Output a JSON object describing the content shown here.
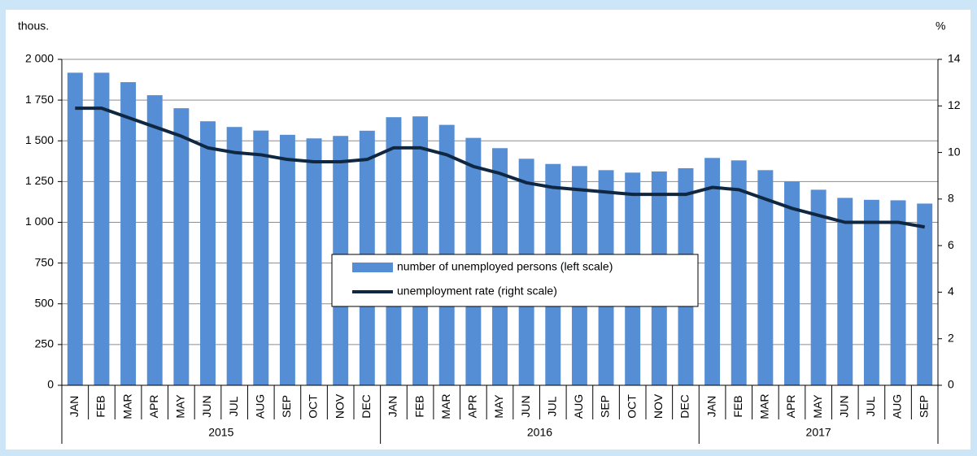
{
  "chart_data": {
    "type": "bar",
    "y_label": "thous.",
    "y2_label": "%",
    "categories": [
      "JAN",
      "FEB",
      "MAR",
      "APR",
      "MAY",
      "JUN",
      "JUL",
      "AUG",
      "SEP",
      "OCT",
      "NOV",
      "DEC",
      "JAN",
      "FEB",
      "MAR",
      "APR",
      "MAY",
      "JUN",
      "JUL",
      "AUG",
      "SEP",
      "OCT",
      "NOV",
      "DEC",
      "JAN",
      "FEB",
      "MAR",
      "APR",
      "MAY",
      "JUN",
      "JUL",
      "AUG",
      "SEP"
    ],
    "years": [
      "2015",
      "2016",
      "2017"
    ],
    "series": [
      {
        "name": "number of unemployed persons (left scale)",
        "type": "bar",
        "color": "#558ed5",
        "values": [
          1918,
          1918,
          1860,
          1780,
          1700,
          1620,
          1585,
          1563,
          1537,
          1515,
          1530,
          1562,
          1645,
          1650,
          1598,
          1518,
          1455,
          1390,
          1358,
          1345,
          1320,
          1305,
          1312,
          1332,
          1395,
          1380,
          1320,
          1250,
          1200,
          1150,
          1138,
          1135,
          1115
        ]
      },
      {
        "name": "unemployment rate (right scale)",
        "type": "line",
        "axis": "y2",
        "color": "#0f2741",
        "values": [
          11.9,
          11.9,
          11.5,
          11.1,
          10.7,
          10.2,
          10.0,
          9.9,
          9.7,
          9.6,
          9.6,
          9.7,
          10.2,
          10.2,
          9.9,
          9.4,
          9.1,
          8.7,
          8.5,
          8.4,
          8.3,
          8.2,
          8.2,
          8.2,
          8.5,
          8.4,
          8.0,
          7.6,
          7.3,
          7.0,
          7.0,
          7.0,
          6.8
        ]
      }
    ],
    "ylim": [
      0,
      2000
    ],
    "yticks": [
      0,
      250,
      500,
      750,
      {
        "value": 1000,
        "label": "1 000"
      },
      {
        "value": 1250,
        "label": "1 250"
      },
      {
        "value": 1500,
        "label": "1 500"
      },
      {
        "value": 1750,
        "label": "1 750"
      },
      {
        "value": 2000,
        "label": "2 000"
      }
    ],
    "y2lim": [
      0,
      14
    ],
    "y2ticks": [
      0,
      2,
      4,
      6,
      8,
      10,
      12,
      14
    ],
    "grid": true
  }
}
